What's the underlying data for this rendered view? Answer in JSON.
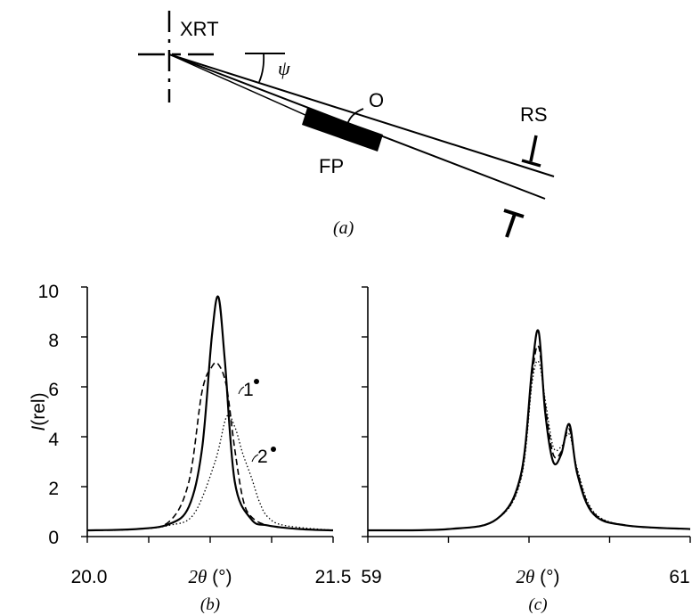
{
  "diagram": {
    "caption": "(a)",
    "labels": {
      "xrt": "XRT",
      "psi": "ψ",
      "o": "O",
      "rs": "RS",
      "fp": "FP"
    }
  },
  "chart_data": [
    {
      "type": "line",
      "panel": "(b)",
      "ylabel_italic": "I",
      "ylabel_rest": "(rel)",
      "xlabel_sym": "2θ",
      "xlabel_unit": " (°)",
      "xlim": [
        20.0,
        21.5
      ],
      "ylim": [
        0,
        10
      ],
      "xtick_labels": [
        "20.0",
        "21.5"
      ],
      "ytick_labels": [
        "0",
        "2",
        "4",
        "6",
        "8",
        "10"
      ],
      "annotations": [
        "1",
        "2"
      ],
      "series": [
        {
          "style": "solid",
          "x": [
            20.0,
            20.3,
            20.5,
            20.62,
            20.7,
            20.76,
            20.8,
            20.84,
            20.9,
            21.0,
            21.1,
            21.3,
            21.5
          ],
          "y": [
            0.25,
            0.3,
            0.5,
            1.2,
            3.5,
            8.0,
            9.6,
            7.0,
            2.2,
            0.7,
            0.45,
            0.3,
            0.25
          ]
        },
        {
          "style": "dashed",
          "x": [
            20.0,
            20.3,
            20.5,
            20.62,
            20.7,
            20.76,
            20.8,
            20.85,
            20.9,
            20.95,
            21.0,
            21.1,
            21.3,
            21.5
          ],
          "y": [
            0.25,
            0.3,
            0.6,
            2.2,
            5.8,
            6.8,
            6.9,
            6.0,
            3.5,
            1.5,
            0.8,
            0.45,
            0.3,
            0.25
          ]
        },
        {
          "style": "dotted",
          "x": [
            20.0,
            20.3,
            20.5,
            20.65,
            20.78,
            20.85,
            20.9,
            20.95,
            21.0,
            21.05,
            21.1,
            21.2,
            21.5
          ],
          "y": [
            0.25,
            0.3,
            0.45,
            0.9,
            3.0,
            4.8,
            4.4,
            3.3,
            2.4,
            1.4,
            0.8,
            0.45,
            0.25
          ]
        }
      ]
    },
    {
      "type": "line",
      "panel": "(c)",
      "xlabel_sym": "2θ",
      "xlabel_unit": " (°)",
      "xlim": [
        59,
        61
      ],
      "ylim": [
        0,
        10
      ],
      "xtick_labels": [
        "59",
        "61"
      ],
      "series": [
        {
          "style": "solid",
          "x": [
            59.0,
            59.5,
            59.8,
            59.95,
            60.02,
            60.06,
            60.1,
            60.15,
            60.2,
            60.25,
            60.3,
            60.4,
            60.6,
            61.0
          ],
          "y": [
            0.25,
            0.3,
            0.7,
            2.5,
            6.8,
            8.2,
            5.0,
            3.0,
            3.3,
            4.5,
            2.5,
            0.9,
            0.45,
            0.3
          ]
        },
        {
          "style": "dashed",
          "x": [
            59.0,
            59.5,
            59.8,
            59.95,
            60.02,
            60.06,
            60.1,
            60.15,
            60.2,
            60.25,
            60.3,
            60.4,
            60.6,
            61.0
          ],
          "y": [
            0.25,
            0.3,
            0.7,
            2.4,
            6.5,
            7.6,
            5.3,
            3.3,
            3.4,
            4.3,
            2.6,
            0.95,
            0.45,
            0.3
          ]
        },
        {
          "style": "dotted",
          "x": [
            59.0,
            59.5,
            59.8,
            59.95,
            60.02,
            60.06,
            60.1,
            60.15,
            60.2,
            60.25,
            60.3,
            60.4,
            60.6,
            61.0
          ],
          "y": [
            0.25,
            0.3,
            0.7,
            2.3,
            6.2,
            7.0,
            5.5,
            3.6,
            3.6,
            4.1,
            2.7,
            1.0,
            0.45,
            0.3
          ]
        }
      ]
    }
  ]
}
